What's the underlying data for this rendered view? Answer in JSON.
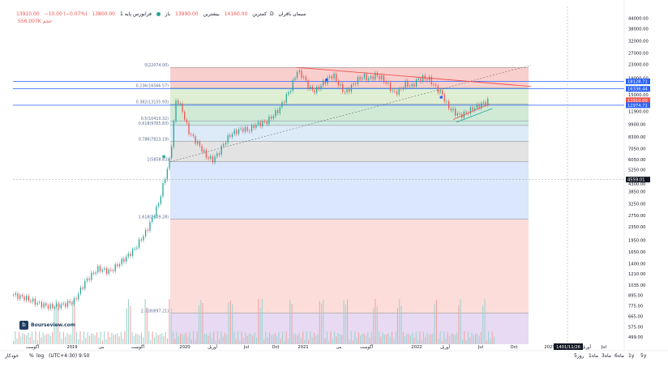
{
  "header": {
    "symbol": "سیمان باقران",
    "tf": "1D",
    "exchange": "فرابورس پایه",
    "open_label": "باز",
    "open_value": "13990.00",
    "high_label": "بیشترین",
    "high_value": "14160.00",
    "low_label": "کمترین",
    "low_value": "13800.00",
    "close_label": "پایانی",
    "close_value": "13910.00",
    "change": "−10.00 (−0.07%)",
    "vol_label": "حجم",
    "vol_value": "556.007K"
  },
  "watermark": "Bourseview.com",
  "bottom": {
    "timezone": "(UTC+4:30) 9:50",
    "percent": "%",
    "log": "log",
    "auto": "خودکار",
    "ranges": [
      "5y",
      "1y",
      "6ماه",
      "3ماه",
      "1ماه",
      "5روز"
    ]
  },
  "colors": {
    "up": "#26a69a",
    "down": "#ef5350",
    "hline": "#2962ff",
    "trend_red": "#ef5350"
  },
  "chart_data": {
    "type": "candlestick",
    "scale": "log",
    "yticks": [
      4300,
      5250,
      6050,
      7050,
      8300,
      9900,
      11900,
      15000,
      16000,
      19000,
      23000,
      27000,
      32000,
      38000,
      44000
    ],
    "yticks_low": [
      499,
      575,
      665,
      775,
      895,
      1035,
      1210,
      1400,
      1650,
      1950,
      2350,
      2750,
      3250,
      3850
    ],
    "ytick_labels": [
      "4300.00",
      "5250.00",
      "6050.00",
      "7050.00",
      "8300.00",
      "9900.00",
      "11900.00",
      "15000.00",
      "16000.00",
      "19000.00",
      "23000.00",
      "27000.00",
      "32000.00",
      "38000.00",
      "44000.00"
    ],
    "ytick_low_labels": [
      "499.00",
      "575.00",
      "665.00",
      "775.00",
      "895.00",
      "1035.00",
      "1210.00",
      "1400.00",
      "1650.00",
      "1950.00",
      "2350.00",
      "2750.00",
      "3250.00",
      "3850.00"
    ],
    "ylim": [
      450,
      52000
    ],
    "xlabels": [
      "آگوست",
      "2019",
      "می",
      "آگوست",
      "2020",
      "آوریل",
      "Jul",
      "Oct",
      "2021",
      "می",
      "آگوست",
      "2022",
      "آوریل",
      "Jul",
      "Oct",
      "2023",
      "آوریل",
      "Jul"
    ],
    "time_marker": "1401/11/26",
    "price_markers": [
      {
        "value": 18128.71,
        "label": "18128.71",
        "color": "#2962ff"
      },
      {
        "value": 16336.44,
        "label": "16336.44",
        "color": "#2962ff"
      },
      {
        "value": 13910.0,
        "label": "13910.00",
        "color": "#ef5350"
      },
      {
        "value": 12974.71,
        "label": "12974.71",
        "color": "#2962ff"
      },
      {
        "value": 4559.01,
        "label": "4559.01",
        "color": "#131722"
      }
    ],
    "fib_levels": [
      {
        "ratio": "0",
        "label": "0(22074.00)",
        "value": 22074.0
      },
      {
        "ratio": "0.236",
        "label": "0.236(16566.57)",
        "value": 16566.57
      },
      {
        "ratio": "0.382",
        "label": "0.382(13155.93)",
        "value": 13155.93
      },
      {
        "ratio": "0.5",
        "label": "0.5(10410.32)",
        "value": 10410.32
      },
      {
        "ratio": "0.618",
        "label": "0.618(9765.83)",
        "value": 9765.83
      },
      {
        "ratio": "0.786",
        "label": "0.786(7823.19)",
        "value": 7823.19
      },
      {
        "ratio": "1",
        "label": "1(5858.83)",
        "value": 5858.83
      },
      {
        "ratio": "1.618",
        "label": "1.618(2609.28)",
        "value": 2609.28
      },
      {
        "ratio": "2.618",
        "label": "2.618(697.21)",
        "value": 697.21
      }
    ],
    "fib_bands": [
      {
        "from": 22074.0,
        "to": 16566.57,
        "color": "#f8c7c4"
      },
      {
        "from": 16566.57,
        "to": 13155.93,
        "color": "#d9eccc"
      },
      {
        "from": 13155.93,
        "to": 10410.32,
        "color": "#c8e6cf"
      },
      {
        "from": 10410.32,
        "to": 9765.83,
        "color": "#c3e8e0"
      },
      {
        "from": 9765.83,
        "to": 7823.19,
        "color": "#d7e7f7"
      },
      {
        "from": 7823.19,
        "to": 5858.83,
        "color": "#dedede"
      },
      {
        "from": 5858.83,
        "to": 2609.28,
        "color": "#d4e3fb"
      },
      {
        "from": 2609.28,
        "to": 697.21,
        "color": "#fbd7d4"
      },
      {
        "from": 697.21,
        "to": 450,
        "color": "#e3d4f0"
      }
    ],
    "price_path": [
      [
        0.0,
        900
      ],
      [
        0.02,
        860
      ],
      [
        0.04,
        800
      ],
      [
        0.06,
        760
      ],
      [
        0.08,
        780
      ],
      [
        0.1,
        820
      ],
      [
        0.12,
        1100
      ],
      [
        0.14,
        1300
      ],
      [
        0.16,
        1250
      ],
      [
        0.18,
        1450
      ],
      [
        0.2,
        1700
      ],
      [
        0.22,
        2200
      ],
      [
        0.24,
        3200
      ],
      [
        0.25,
        4500
      ],
      [
        0.26,
        6300
      ],
      [
        0.27,
        14500
      ],
      [
        0.28,
        12000
      ],
      [
        0.29,
        9000
      ],
      [
        0.3,
        8000
      ],
      [
        0.31,
        7200
      ],
      [
        0.32,
        6300
      ],
      [
        0.33,
        6000
      ],
      [
        0.34,
        6600
      ],
      [
        0.35,
        7700
      ],
      [
        0.36,
        8600
      ],
      [
        0.37,
        9000
      ],
      [
        0.38,
        9300
      ],
      [
        0.39,
        9100
      ],
      [
        0.4,
        9800
      ],
      [
        0.42,
        10300
      ],
      [
        0.44,
        12200
      ],
      [
        0.46,
        16500
      ],
      [
        0.47,
        21000
      ],
      [
        0.48,
        19500
      ],
      [
        0.49,
        16500
      ],
      [
        0.5,
        15800
      ],
      [
        0.51,
        17200
      ],
      [
        0.52,
        18700
      ],
      [
        0.53,
        19900
      ],
      [
        0.54,
        17200
      ],
      [
        0.55,
        15400
      ],
      [
        0.56,
        16800
      ],
      [
        0.57,
        18500
      ],
      [
        0.58,
        19500
      ],
      [
        0.59,
        18700
      ],
      [
        0.6,
        19900
      ],
      [
        0.61,
        19000
      ],
      [
        0.62,
        17500
      ],
      [
        0.63,
        15400
      ],
      [
        0.64,
        15900
      ],
      [
        0.65,
        17600
      ],
      [
        0.66,
        16800
      ],
      [
        0.67,
        18600
      ],
      [
        0.68,
        19100
      ],
      [
        0.69,
        18600
      ],
      [
        0.7,
        16600
      ],
      [
        0.71,
        15300
      ],
      [
        0.72,
        12800
      ],
      [
        0.73,
        11800
      ],
      [
        0.74,
        11200
      ],
      [
        0.75,
        11600
      ],
      [
        0.76,
        12300
      ],
      [
        0.77,
        12800
      ],
      [
        0.78,
        13400
      ],
      [
        0.79,
        13910
      ]
    ],
    "volume_peaks": [
      0.07,
      0.1,
      0.19,
      0.22,
      0.26,
      0.31,
      0.36,
      0.41,
      0.46,
      0.51,
      0.55,
      0.6,
      0.64,
      0.7,
      0.74,
      0.78
    ]
  }
}
